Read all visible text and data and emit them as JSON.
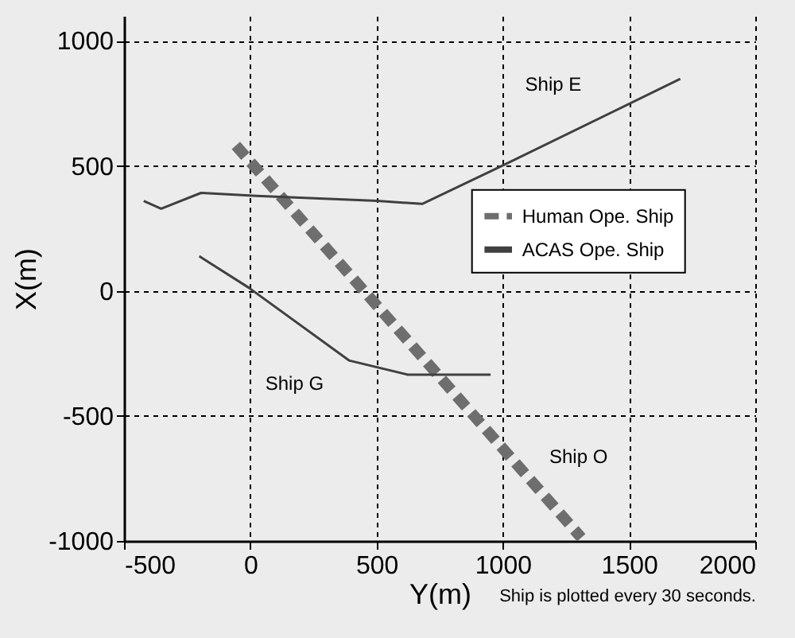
{
  "chart_data": {
    "type": "line",
    "xlabel": "Y(m)",
    "ylabel": "X(m)",
    "series": [
      {
        "name": "Human Ope. Ship",
        "color": "#6e6e6e",
        "line_style": "dashed",
        "x": [
          -57,
          1311
        ],
        "values": [
          582,
          -987
        ]
      },
      {
        "name": "ACAS Ope. Ship",
        "color": "#404040",
        "line_style": "solid",
        "x": [
          -422,
          -353,
          -195,
          25,
          504,
          681,
          1009,
          1703
        ],
        "values": [
          360,
          329,
          392,
          380,
          360,
          348,
          506,
          848
        ]
      },
      {
        "color": "#404040",
        "line_style": "solid",
        "x": [
          -202,
          -6,
          391,
          624,
          952
        ],
        "values": [
          139,
          13,
          -278,
          -335,
          -335
        ]
      }
    ],
    "xlim": [
      -500,
      2000
    ],
    "xticks": [
      -500,
      0,
      500,
      1000,
      1500,
      2000
    ],
    "ylim": [
      -1000,
      1100
    ],
    "yticks": [
      -1000,
      -500,
      0,
      500,
      1000
    ],
    "grid": true,
    "legend": "right",
    "annotations": [
      "Ship E",
      "Ship G",
      "Ship O",
      "Ship is plotted every 30 seconds."
    ]
  }
}
